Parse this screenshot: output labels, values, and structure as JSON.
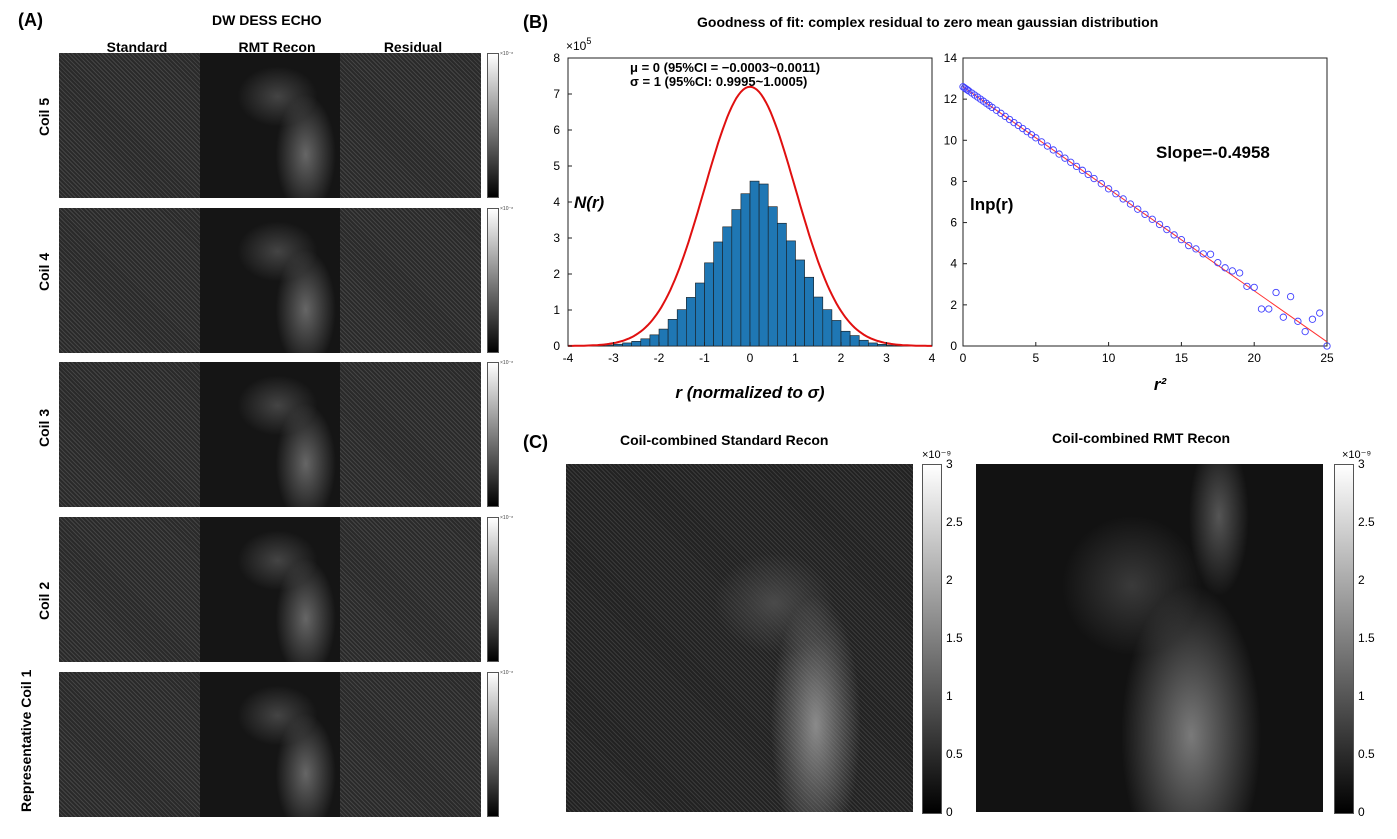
{
  "panelA": {
    "label": "(A)",
    "title": "DW DESS ECHO",
    "columns": [
      "Standard",
      "RMT Recon",
      "Residual"
    ],
    "rows": [
      "Coil 5",
      "Coil 4",
      "Coil 3",
      "Coil 2",
      "Representative Coil 1"
    ],
    "colorbar_exponent": "×10⁻⁸"
  },
  "panelB": {
    "label": "(B)",
    "title": "Goodness of fit: complex residual to zero mean gaussian distribution",
    "hist_ylabel": "N(r)",
    "hist_xlabel": "r (normalized to σ)",
    "hist_scale": "×10",
    "hist_scale_exp": "5",
    "stats_line1": "μ = 0   (95%CI = −0.0003~0.0011)",
    "stats_line2": "σ = 1   (95%CI: 0.9995~1.0005)",
    "lnp_ylabel": "lnp(r)",
    "lnp_xlabel": "r²",
    "slope_label": "Slope=-0.4958"
  },
  "panelC": {
    "label": "(C)",
    "left_title": "Coil-combined Standard Recon",
    "right_title": "Coil-combined RMT Recon",
    "colorbar_exponent": "×10⁻⁹",
    "colorbar_ticks": [
      "3",
      "2.5",
      "2",
      "1.5",
      "1",
      "0.5",
      "0"
    ]
  },
  "chart_data": [
    {
      "type": "bar",
      "xlabel": "r (normalized to σ)",
      "ylabel": "N(r)",
      "xlim": [
        -4,
        4
      ],
      "ylim": [
        0,
        8
      ],
      "y_multiplier": 100000,
      "xticks": [
        -4,
        -3,
        -2,
        -1,
        0,
        1,
        2,
        3,
        4
      ],
      "yticks": [
        0,
        1,
        2,
        3,
        4,
        5,
        6,
        7,
        8
      ],
      "bin_width": 0.2,
      "bin_centers": [
        -3.9,
        -3.7,
        -3.5,
        -3.3,
        -3.1,
        -2.9,
        -2.7,
        -2.5,
        -2.3,
        -2.1,
        -1.9,
        -1.7,
        -1.5,
        -1.3,
        -1.1,
        -0.9,
        -0.7,
        -0.5,
        -0.3,
        -0.1,
        0.1,
        0.3,
        0.5,
        0.7,
        0.9,
        1.1,
        1.3,
        1.5,
        1.7,
        1.9,
        2.1,
        2.3,
        2.5,
        2.7,
        2.9,
        3.1,
        3.3,
        3.5,
        3.7,
        3.9
      ],
      "values": [
        0.001,
        0.003,
        0.006,
        0.013,
        0.027,
        0.05,
        0.085,
        0.13,
        0.2,
        0.31,
        0.47,
        0.74,
        1.01,
        1.35,
        1.75,
        2.31,
        2.89,
        3.31,
        3.79,
        4.23,
        4.58,
        4.5,
        3.87,
        3.41,
        2.92,
        2.39,
        1.91,
        1.36,
        1.01,
        0.71,
        0.41,
        0.29,
        0.16,
        0.085,
        0.046,
        0.025,
        0.012,
        0.005,
        0.002,
        0.001
      ],
      "fit_curve": "gaussian",
      "fit_peak": 7.2,
      "series_color": "#1f77b4",
      "fit_color": "#e01010"
    },
    {
      "type": "scatter",
      "xlabel": "r²",
      "ylabel": "lnp(r)",
      "xlim": [
        0,
        25
      ],
      "ylim": [
        0,
        14
      ],
      "xticks": [
        0,
        5,
        10,
        15,
        20,
        25
      ],
      "yticks": [
        0,
        2,
        4,
        6,
        8,
        10,
        12,
        14
      ],
      "slope": -0.4958,
      "intercept": 12.6,
      "x": [
        0.0,
        0.1,
        0.2,
        0.3,
        0.4,
        0.6,
        0.8,
        1.0,
        1.2,
        1.4,
        1.6,
        1.8,
        2.0,
        2.3,
        2.6,
        2.9,
        3.2,
        3.5,
        3.8,
        4.1,
        4.4,
        4.7,
        5.0,
        5.4,
        5.8,
        6.2,
        6.6,
        7.0,
        7.4,
        7.8,
        8.2,
        8.6,
        9.0,
        9.5,
        10.0,
        10.5,
        11.0,
        11.5,
        12.0,
        12.5,
        13.0,
        13.5,
        14.0,
        14.5,
        15.0,
        15.5,
        16.0,
        16.5,
        17.0,
        17.5,
        18.0,
        18.5,
        19.0,
        19.5,
        20.0,
        20.5,
        21.0,
        21.5,
        22.0,
        22.5,
        23.0,
        23.5,
        24.0,
        24.5,
        25.0
      ],
      "y": [
        12.6,
        12.55,
        12.5,
        12.45,
        12.4,
        12.3,
        12.2,
        12.1,
        12.0,
        11.9,
        11.8,
        11.7,
        11.6,
        11.46,
        11.31,
        11.16,
        11.01,
        10.86,
        10.72,
        10.57,
        10.42,
        10.27,
        10.12,
        9.92,
        9.72,
        9.53,
        9.33,
        9.13,
        8.93,
        8.73,
        8.54,
        8.34,
        8.14,
        7.89,
        7.64,
        7.4,
        7.15,
        6.9,
        6.65,
        6.4,
        6.16,
        5.91,
        5.66,
        5.4,
        5.17,
        4.88,
        4.72,
        4.48,
        4.46,
        4.05,
        3.8,
        3.65,
        3.55,
        2.9,
        2.85,
        1.8,
        1.8,
        2.6,
        1.4,
        2.4,
        1.2,
        0.7,
        1.3,
        1.6,
        0.0
      ],
      "marker_color": "#4040ff",
      "fit_color": "#ff3030"
    }
  ]
}
